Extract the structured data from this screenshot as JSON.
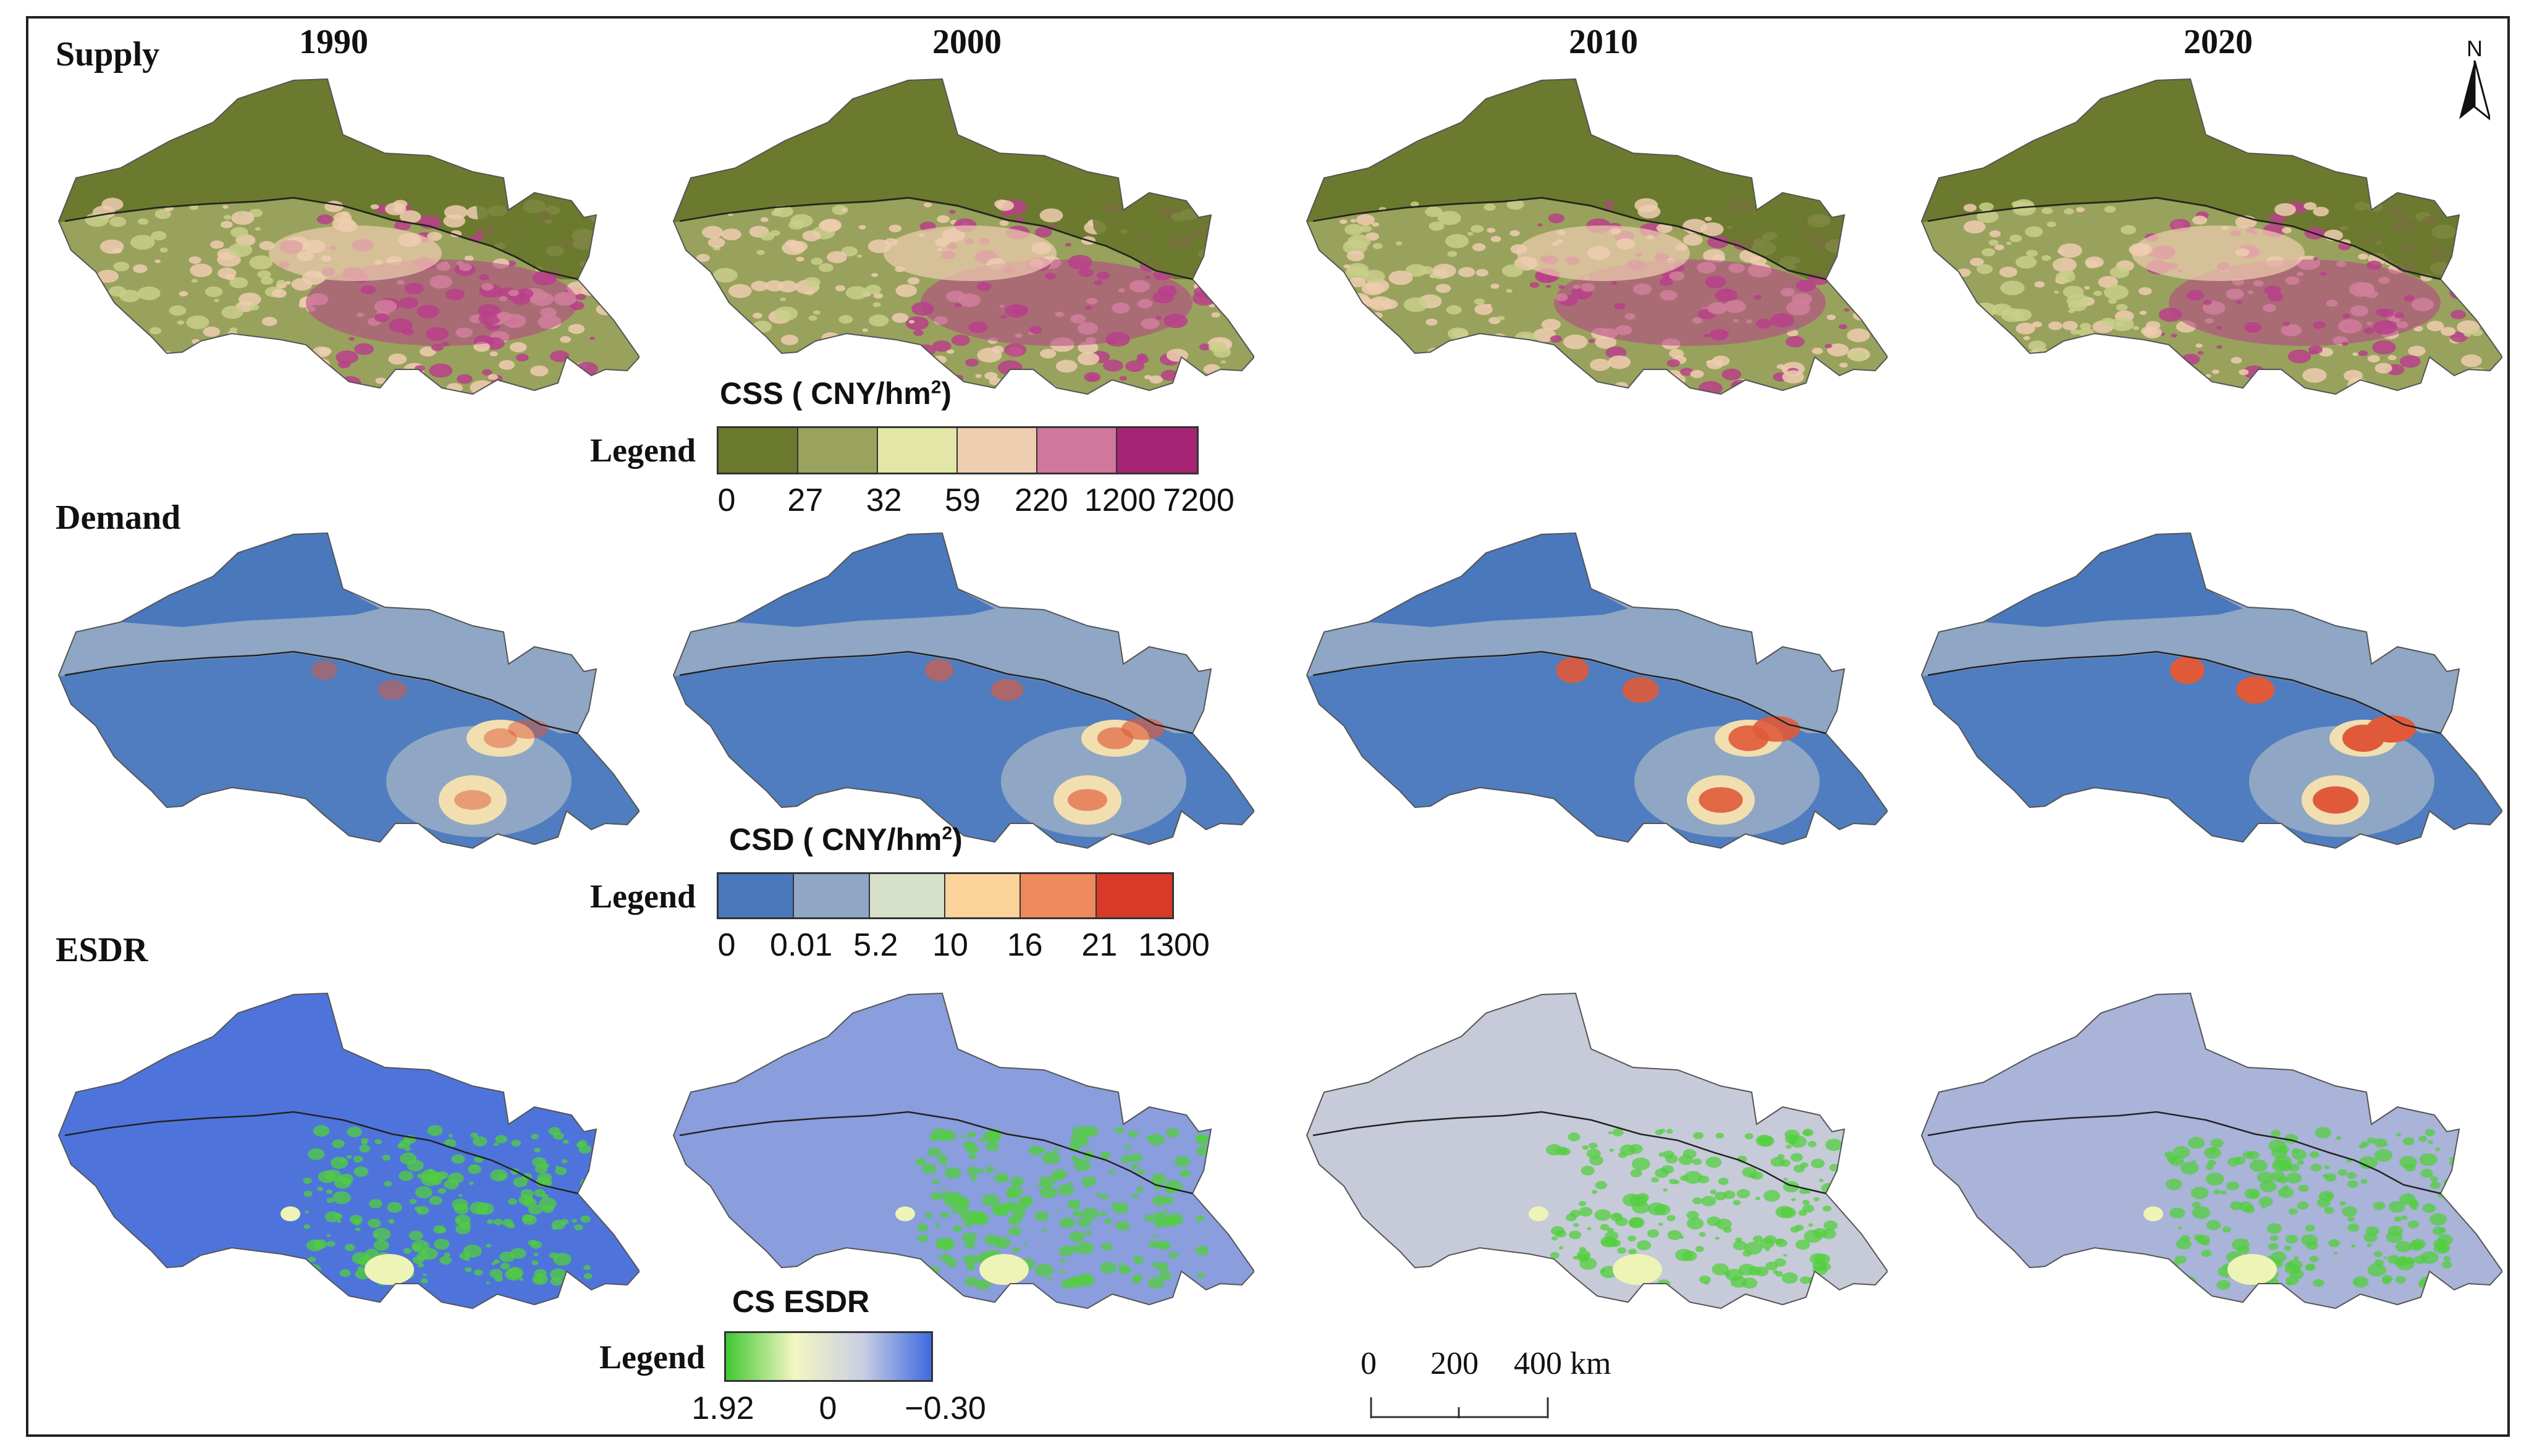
{
  "row_labels": [
    "Supply",
    "Demand",
    "ESDR"
  ],
  "years": [
    "1990",
    "2000",
    "2010",
    "2020"
  ],
  "north_label": "N",
  "legend_word": "Legend",
  "css_legend": {
    "title": "CSS ( CNY/hm",
    "title_sup": "2",
    "title_end": ")",
    "breaks": [
      "0",
      "27",
      "32",
      "59",
      "220",
      "1200",
      "7200"
    ],
    "colors": [
      "#6b7a2e",
      "#9aa35d",
      "#e2e6a6",
      "#efcdb0",
      "#d0779c",
      "#a72474"
    ]
  },
  "csd_legend": {
    "title": "CSD ( CNY/hm",
    "title_sup": "2",
    "title_end": ")",
    "breaks": [
      "0",
      "0.01",
      "5.2",
      "10",
      "16",
      "21",
      "1300"
    ],
    "colors": [
      "#4a78bd",
      "#8fa6c4",
      "#d7e0c8",
      "#fcd39a",
      "#ee8a5c",
      "#d83a2a"
    ]
  },
  "esdr_legend": {
    "title": "CS ESDR",
    "low_label": "1.92",
    "mid_label": "0",
    "high_label": "−0.30",
    "gradient": [
      "#40c832",
      "#f3f6c2",
      "#c9cfe3",
      "#3f6be0"
    ]
  },
  "scale_bar": {
    "labels": [
      "0",
      "200",
      "400 km"
    ]
  },
  "map_styles": {
    "supply": {
      "north": "#6b7a2e",
      "south_base": "#98a25c",
      "south_patch": "#efcdb0",
      "hot": "#b8408a"
    },
    "demand": {
      "north": "#4a78bd",
      "middle": "#8fa6c4",
      "south": "#4f7dbf",
      "hot": "#e05a3a",
      "ring": "#f1dfb0"
    },
    "esdr_bg": [
      "#4e74dc",
      "#8a9ddc",
      "#c7cad8",
      "#aab3d8"
    ],
    "esdr_green": "#52cf3e",
    "esdr_pale": "#eef4b6"
  }
}
